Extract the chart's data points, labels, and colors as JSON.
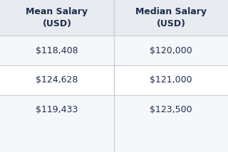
{
  "col_headers": [
    "Mean Salary\n(USD)",
    "Median Salary\n(USD)"
  ],
  "rows": [
    [
      "$118,408",
      "$120,000"
    ],
    [
      "$124,628",
      "$121,000"
    ],
    [
      "$119,433",
      "$123,500"
    ]
  ],
  "header_bg": "#e8ecf0",
  "row_bg_odd": "#f5f7fa",
  "row_bg_even": "#ffffff",
  "divider_color": "#c8cfd8",
  "text_color": "#1e2d4f",
  "header_fontsize": 9,
  "cell_fontsize": 9,
  "fig_bg": "#f5f7fa"
}
